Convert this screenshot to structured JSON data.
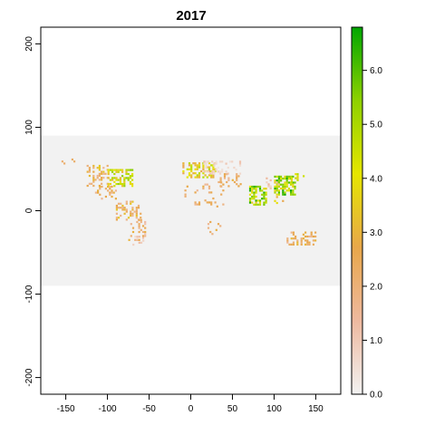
{
  "title": "2017",
  "x_axis": {
    "min": -180,
    "max": 180,
    "ticks": [
      "-150",
      "-100",
      "-50",
      "0",
      "50",
      "100",
      "150"
    ]
  },
  "y_axis": {
    "min": -220,
    "max": 220,
    "ticks": [
      "-200",
      "-100",
      "0",
      "100",
      "200"
    ]
  },
  "raster_extent": {
    "lon": [
      -180,
      180
    ],
    "lat": [
      -90,
      90
    ]
  },
  "legend": {
    "min": 0.0,
    "max": 6.8,
    "ticks": [
      "0.0",
      "1.0",
      "2.0",
      "3.0",
      "4.0",
      "5.0",
      "6.0"
    ],
    "palette": [
      "#f2f2f2",
      "#eeb99f",
      "#e8a74a",
      "#e6e600",
      "#8ed100",
      "#00a600"
    ]
  },
  "colors": {
    "background_na": "#f2f2f2"
  }
}
